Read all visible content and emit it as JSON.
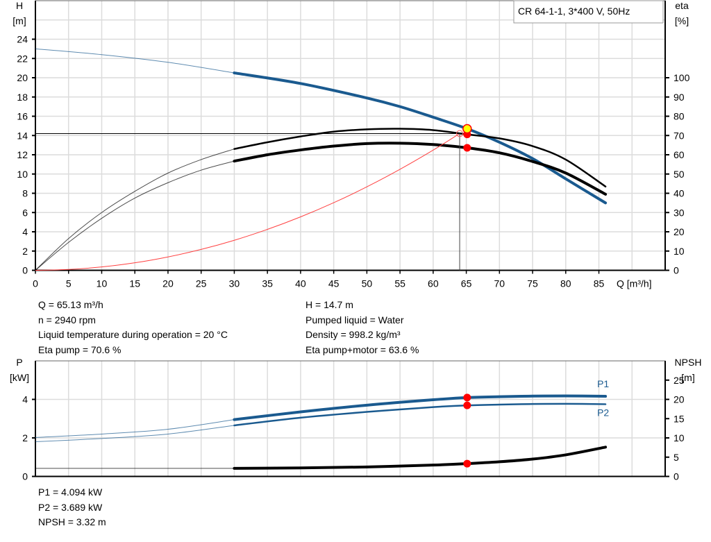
{
  "operating_point_info": {
    "left": [
      "Q = 65.13 m³/h",
      "n = 2940 rpm",
      "Liquid temperature during operation = 20 °C",
      "Eta pump = 70.6 %"
    ],
    "right": [
      "H = 14.7 m",
      "Pumped liquid = Water",
      "Density = 998.2 kg/m³",
      "Eta pump+motor = 63.6 %"
    ]
  },
  "power_info": [
    "P1 = 4.094 kW",
    "P2 = 3.689 kW",
    "NPSH = 3.32 m"
  ],
  "colors": {
    "head": "#1a5a8f",
    "power": "#1a5a8f",
    "efficiency": "#000000",
    "npsh": "#000000",
    "system": "#ff4040",
    "marker": "#ff0000",
    "operating_point": "#ffff00",
    "grid": "#dcdcdc"
  },
  "chart_data": [
    {
      "type": "line",
      "legend_text": "CR 64-1-1, 3*400 V, 50Hz",
      "legend_placement": "top-right",
      "grid": true,
      "x_axis": {
        "label": "Q [m³/h]",
        "range": [
          0,
          95
        ],
        "ticks": [
          0,
          5,
          10,
          15,
          20,
          25,
          30,
          35,
          40,
          45,
          50,
          55,
          60,
          65,
          70,
          75,
          80,
          85
        ]
      },
      "y_left": {
        "label": "H",
        "unit": "[m]",
        "range": [
          0,
          28
        ],
        "ticks": [
          0,
          2,
          4,
          6,
          8,
          10,
          12,
          14,
          16,
          18,
          20,
          22,
          24
        ]
      },
      "y_right": {
        "label": "eta",
        "unit": "[%]",
        "range": [
          0,
          140
        ],
        "ticks": [
          0,
          10,
          20,
          30,
          40,
          50,
          60,
          70,
          80,
          90,
          100
        ]
      },
      "series": [
        {
          "kind": "head",
          "axis": "left",
          "color": "#1a5a8f",
          "thick_from": 30,
          "x": [
            0,
            10,
            20,
            30,
            40,
            50,
            55,
            60,
            65.13,
            70,
            75,
            80,
            86
          ],
          "y": [
            23,
            22.4,
            21.6,
            20.5,
            19.4,
            17.9,
            17.0,
            15.9,
            14.7,
            13.3,
            11.6,
            9.5,
            7.0
          ]
        },
        {
          "kind": "eta-pump",
          "axis": "right",
          "color": "#000000",
          "thick_from": 30,
          "x": [
            0,
            5,
            10,
            15,
            20,
            25,
            30,
            35,
            40,
            45,
            50,
            55,
            60,
            65.13,
            70,
            75,
            80,
            86
          ],
          "y": [
            0,
            16.5,
            30,
            41,
            50.5,
            57.5,
            63,
            66.5,
            69.5,
            72,
            73.2,
            73.5,
            72.8,
            70.6,
            68.5,
            64.5,
            57.5,
            43.5
          ]
        },
        {
          "kind": "eta-pump-motor",
          "axis": "right",
          "color": "#000000",
          "thick_from": 30,
          "x": [
            0,
            5,
            10,
            15,
            20,
            25,
            30,
            35,
            40,
            45,
            50,
            55,
            60,
            65.13,
            70,
            75,
            80,
            86
          ],
          "y": [
            0,
            14.5,
            27,
            37.5,
            45.5,
            52,
            56.7,
            60,
            62.5,
            64.5,
            65.8,
            66,
            65.3,
            63.6,
            61,
            56.5,
            50.5,
            39.5
          ]
        },
        {
          "kind": "system-curve",
          "axis": "left",
          "color": "#ff4040",
          "x": [
            0,
            5,
            10,
            15,
            20,
            25,
            30,
            35,
            40,
            45,
            50,
            55,
            60,
            64
          ],
          "y": [
            0,
            0.09,
            0.35,
            0.78,
            1.39,
            2.17,
            3.12,
            4.25,
            5.55,
            7.02,
            8.67,
            10.49,
            12.48,
            14.2
          ]
        }
      ],
      "duty_point": {
        "Q": 64.0,
        "H": 14.2
      },
      "operating_point": {
        "Q": 65.13,
        "H": 14.7,
        "eta_pump": 70.6,
        "eta_pump_motor": 63.6
      }
    },
    {
      "type": "line",
      "grid": true,
      "x_axis": {
        "range": [
          0,
          95
        ],
        "ticks": []
      },
      "y_left": {
        "label": "P",
        "unit": "[kW]",
        "range": [
          0,
          6
        ],
        "ticks": [
          0,
          2,
          4
        ]
      },
      "y_right": {
        "label": "NPSH",
        "unit": "[m]",
        "range": [
          0,
          30
        ],
        "ticks": [
          0,
          5,
          10,
          15,
          20,
          25
        ]
      },
      "series": [
        {
          "name": "P1",
          "kind": "p1",
          "axis": "left",
          "color": "#1a5a8f",
          "thick_from": 30,
          "x": [
            0,
            10,
            20,
            30,
            40,
            50,
            60,
            65.13,
            70,
            75,
            80,
            86
          ],
          "y": [
            2.02,
            2.2,
            2.45,
            2.95,
            3.35,
            3.7,
            3.98,
            4.094,
            4.14,
            4.17,
            4.18,
            4.16
          ]
        },
        {
          "name": "P2",
          "kind": "p2",
          "axis": "left",
          "color": "#1a5a8f",
          "thick_from": 30,
          "x": [
            0,
            10,
            20,
            30,
            40,
            50,
            60,
            65.13,
            70,
            75,
            80,
            86
          ],
          "y": [
            1.8,
            1.97,
            2.2,
            2.65,
            3.05,
            3.35,
            3.6,
            3.689,
            3.73,
            3.76,
            3.77,
            3.75
          ]
        },
        {
          "kind": "npsh",
          "axis": "right",
          "color": "#000000",
          "thick_from": 30,
          "x": [
            0,
            30,
            40,
            50,
            60,
            65.13,
            70,
            75,
            80,
            86
          ],
          "y": [
            2.1,
            2.1,
            2.2,
            2.45,
            2.95,
            3.32,
            3.8,
            4.5,
            5.6,
            7.6
          ]
        }
      ],
      "operating_point": {
        "Q": 65.13,
        "P1": 4.094,
        "P2": 3.689,
        "NPSH": 3.32
      }
    }
  ]
}
